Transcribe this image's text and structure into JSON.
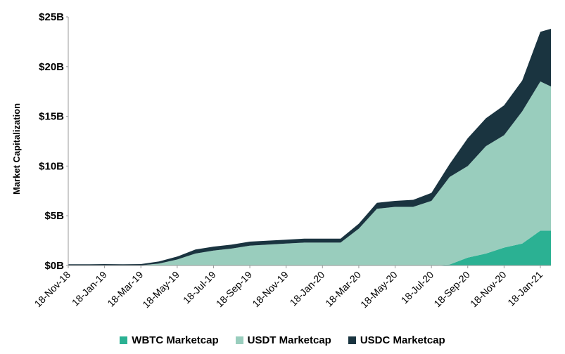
{
  "chart_data": {
    "type": "area",
    "stacked": true,
    "title": "",
    "xlabel": "",
    "ylabel": "Market Capitalization",
    "ylim": [
      0,
      25
    ],
    "y_unit": "billions USD",
    "y_ticks": [
      0,
      5,
      10,
      15,
      20,
      25
    ],
    "y_tick_labels": [
      "$0B",
      "$5B",
      "$10B",
      "$15B",
      "$20B",
      "$25B"
    ],
    "x_tick_labels": [
      "18-Nov-18",
      "18-Jan-19",
      "18-Mar-19",
      "18-May-19",
      "18-Jul-19",
      "18-Sep-19",
      "18-Nov-19",
      "18-Jan-20",
      "18-Mar-20",
      "18-May-20",
      "18-Jul-20",
      "18-Sep-20",
      "18-Nov-20",
      "18-Jan-21"
    ],
    "x": [
      "18-Nov-18",
      "18-Dec-18",
      "18-Jan-19",
      "18-Feb-19",
      "18-Mar-19",
      "18-Apr-19",
      "18-May-19",
      "18-Jun-19",
      "18-Jul-19",
      "18-Aug-19",
      "18-Sep-19",
      "18-Oct-19",
      "18-Nov-19",
      "18-Dec-19",
      "18-Jan-20",
      "18-Feb-20",
      "18-Mar-20",
      "18-Apr-20",
      "18-May-20",
      "18-Jun-20",
      "18-Jul-20",
      "18-Aug-20",
      "18-Sep-20",
      "18-Oct-20",
      "18-Nov-20",
      "18-Dec-20",
      "18-Jan-21",
      "25-Jan-21"
    ],
    "series": [
      {
        "name": "WBTC Marketcap",
        "color": "#2bb193",
        "values": [
          0,
          0,
          0,
          0,
          0,
          0,
          0,
          0,
          0,
          0,
          0,
          0,
          0,
          0,
          0,
          0,
          0,
          0,
          0,
          0,
          0,
          0.1,
          0.8,
          1.2,
          1.8,
          2.2,
          3.5,
          3.5
        ]
      },
      {
        "name": "USDT Marketcap",
        "color": "#99cdbd",
        "values": [
          0,
          0,
          0.02,
          0,
          0.02,
          0.2,
          0.6,
          1.2,
          1.5,
          1.7,
          2,
          2.1,
          2.2,
          2.3,
          2.3,
          2.3,
          3.7,
          5.7,
          5.9,
          5.9,
          6.5,
          8.8,
          9.2,
          10.8,
          11.3,
          13.3,
          15,
          14.5
        ]
      },
      {
        "name": "USDC Marketcap",
        "color": "#1a3440",
        "values": [
          0.12,
          0.12,
          0.12,
          0.12,
          0.12,
          0.2,
          0.3,
          0.4,
          0.4,
          0.4,
          0.4,
          0.4,
          0.4,
          0.4,
          0.4,
          0.4,
          0.5,
          0.6,
          0.6,
          0.7,
          0.8,
          1.3,
          2.8,
          2.8,
          3.0,
          3.1,
          5.0,
          5.8
        ]
      }
    ],
    "grid": false,
    "legend_position": "bottom-center"
  }
}
